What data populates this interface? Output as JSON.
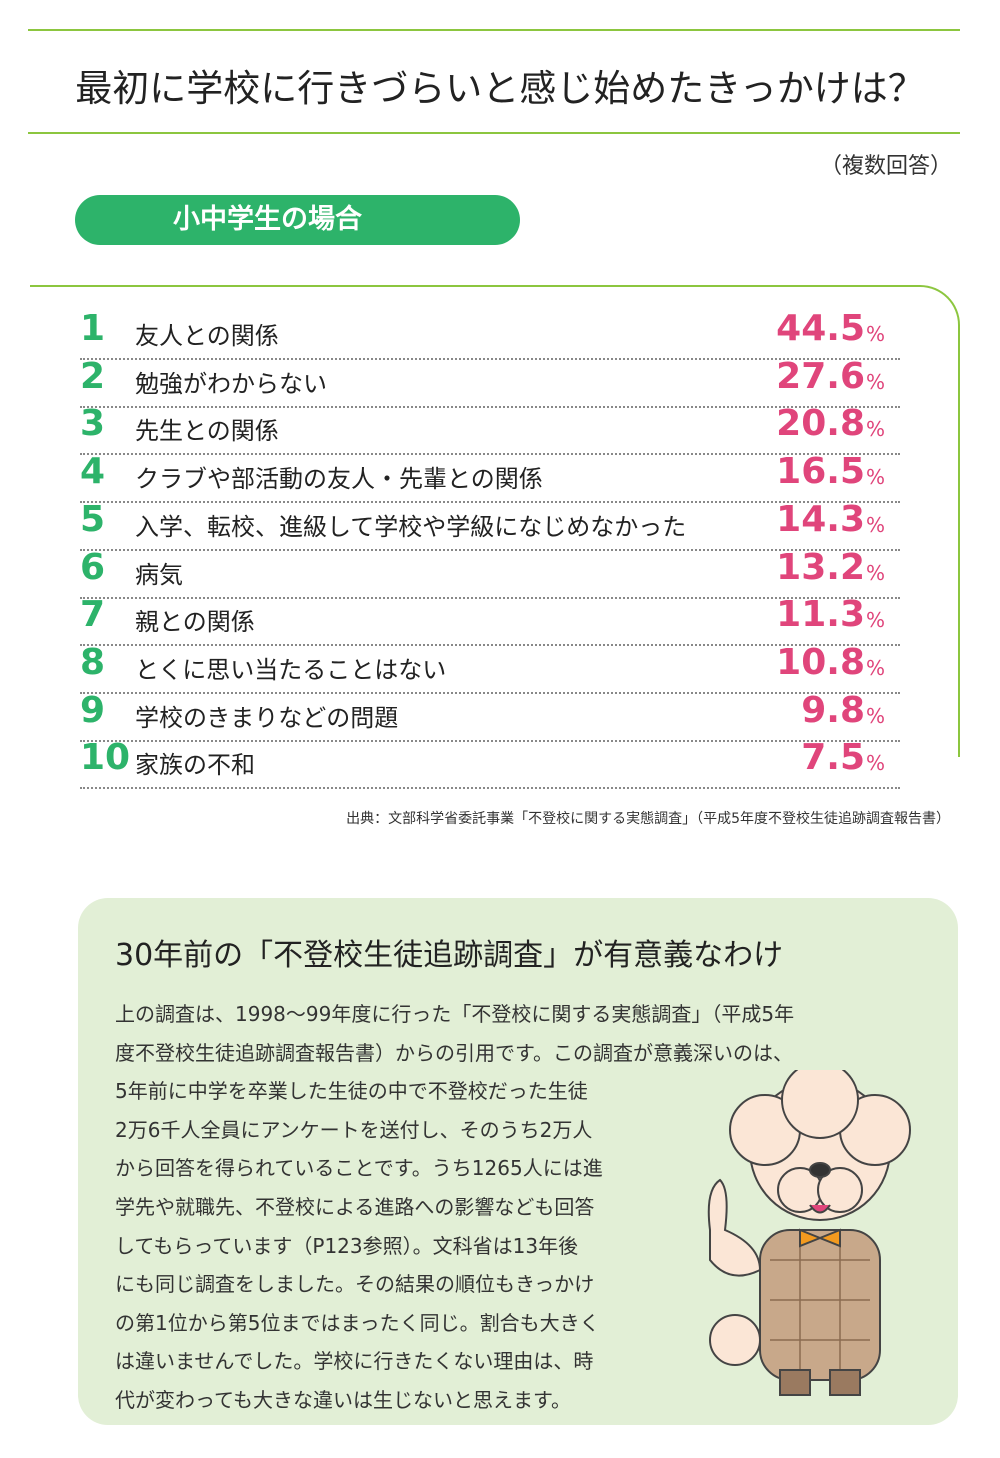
{
  "header": {
    "title": "最初に学校に行きづらいと感じ始めたきっかけは？",
    "note": "（複数回答）"
  },
  "section": {
    "label": "小中学生の場合"
  },
  "ranking": {
    "unit": "%",
    "rows": [
      {
        "rank": 1,
        "label": "友人との関係",
        "value": 44.5
      },
      {
        "rank": 2,
        "label": "勉強がわからない",
        "value": 27.6
      },
      {
        "rank": 3,
        "label": "先生との関係",
        "value": 20.8
      },
      {
        "rank": 4,
        "label": "クラブや部活動の友人・先輩との関係",
        "value": 16.5
      },
      {
        "rank": 5,
        "label": "入学、転校、進級して学校や学級になじめなかった",
        "value": 14.3
      },
      {
        "rank": 6,
        "label": "病気",
        "value": 13.2
      },
      {
        "rank": 7,
        "label": "親との関係",
        "value": 11.3
      },
      {
        "rank": 8,
        "label": "とくに思い当たることはない",
        "value": 10.8
      },
      {
        "rank": 9,
        "label": "学校のきまりなどの問題",
        "value": 9.8
      },
      {
        "rank": 10,
        "label": "家族の不和",
        "value": 7.5
      }
    ]
  },
  "source": "出典：文部科学省委託事業「不登校に関する実態調査」（平成5年度不登校生徒追跡調査報告書）",
  "box": {
    "title": "30年前の「不登校生徒追跡調査」が有意義なわけ",
    "lines": [
      "上の調査は、1998～99年度に行った「不登校に関する実態調査」（平成5年",
      "度不登校生徒追跡調査報告書）からの引用です。この調査が意義深いのは、",
      "5年前に中学を卒業した生徒の中で不登校だった生徒",
      "2万6千人全員にアンケートを送付し、そのうち2万人",
      "から回答を得られていることです。うち1265人には進",
      "学先や就職先、不登校による進路への影響なども回答",
      "してもらっています（P123参照）。文科省は13年後",
      "にも同じ調査をしました。その結果の順位もきっかけ",
      "の第1位から第5位まではまったく同じ。割合も大きく",
      "は違いませんでした。学校に行きたくない理由は、時",
      "代が変わっても大きな違いは生じないと思えます。"
    ]
  }
}
